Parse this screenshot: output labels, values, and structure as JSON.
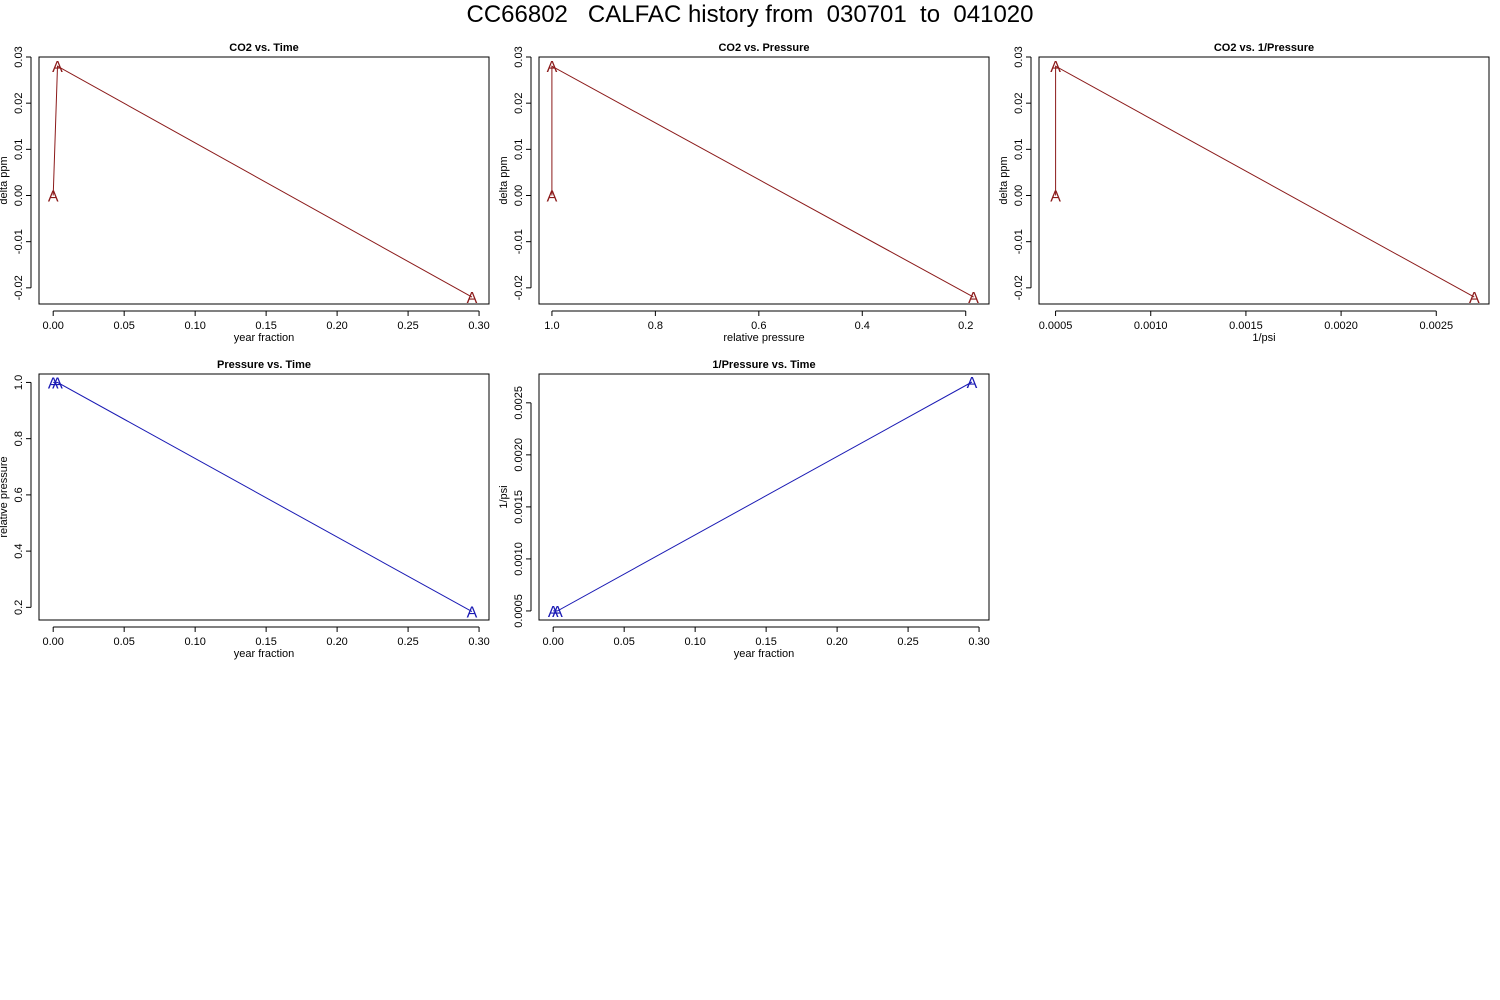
{
  "page": {
    "title": "CC66802   CALFAC history from  030701  to  041020"
  },
  "colors": {
    "co2_series": "#8b1a1a",
    "pressure_series": "#1a1ab4"
  },
  "chart_data": [
    {
      "id": "co2-vs-time",
      "type": "line",
      "title": "CO2 vs. Time",
      "xlabel": "year fraction",
      "ylabel": "delta ppm",
      "xlim": [
        -0.01,
        0.307
      ],
      "ylim": [
        -0.0235,
        0.03
      ],
      "xticks": [
        0.0,
        0.05,
        0.1,
        0.15,
        0.2,
        0.25,
        0.3
      ],
      "xtick_labels": [
        "0.00",
        "0.05",
        "0.10",
        "0.15",
        "0.20",
        "0.25",
        "0.30"
      ],
      "yticks": [
        -0.02,
        -0.01,
        0.0,
        0.01,
        0.02,
        0.03
      ],
      "ytick_labels": [
        "-0.02",
        "-0.01",
        "0.00",
        "0.01",
        "0.02",
        "0.03"
      ],
      "marker": "A",
      "color": "#8b1a1a",
      "points": [
        {
          "x": 0.0,
          "y": 0.0
        },
        {
          "x": 0.003,
          "y": 0.028
        },
        {
          "x": 0.295,
          "y": -0.022
        }
      ]
    },
    {
      "id": "co2-vs-pressure",
      "type": "line",
      "title": "CO2 vs. Pressure",
      "xlabel": "relative pressure",
      "ylabel": "delta ppm",
      "xlim": [
        1.025,
        0.155
      ],
      "ylim": [
        -0.0235,
        0.03
      ],
      "xticks": [
        1.0,
        0.8,
        0.6,
        0.4,
        0.2
      ],
      "xtick_labels": [
        "1.0",
        "0.8",
        "0.6",
        "0.4",
        "0.2"
      ],
      "yticks": [
        -0.02,
        -0.01,
        0.0,
        0.01,
        0.02,
        0.03
      ],
      "ytick_labels": [
        "-0.02",
        "-0.01",
        "0.00",
        "0.01",
        "0.02",
        "0.03"
      ],
      "marker": "A",
      "color": "#8b1a1a",
      "points": [
        {
          "x": 1.0,
          "y": 0.0
        },
        {
          "x": 1.0,
          "y": 0.028
        },
        {
          "x": 0.185,
          "y": -0.022
        }
      ]
    },
    {
      "id": "co2-vs-inv-pressure",
      "type": "line",
      "title": "CO2 vs. 1/Pressure",
      "xlabel": "1/psi",
      "ylabel": "delta ppm",
      "xlim": [
        0.000413,
        0.002777
      ],
      "ylim": [
        -0.0235,
        0.03
      ],
      "xticks": [
        0.0005,
        0.001,
        0.0015,
        0.002,
        0.0025
      ],
      "xtick_labels": [
        "0.0005",
        "0.0010",
        "0.0015",
        "0.0020",
        "0.0025"
      ],
      "yticks": [
        -0.02,
        -0.01,
        0.0,
        0.01,
        0.02,
        0.03
      ],
      "ytick_labels": [
        "-0.02",
        "-0.01",
        "0.00",
        "0.01",
        "0.02",
        "0.03"
      ],
      "marker": "A",
      "color": "#8b1a1a",
      "points": [
        {
          "x": 0.0005,
          "y": 0.0
        },
        {
          "x": 0.0005,
          "y": 0.028
        },
        {
          "x": 0.0027,
          "y": -0.022
        }
      ]
    },
    {
      "id": "pressure-vs-time",
      "type": "line",
      "title": "Pressure vs. Time",
      "xlabel": "year fraction",
      "ylabel": "relative pressure",
      "xlim": [
        -0.01,
        0.307
      ],
      "ylim": [
        0.155,
        1.03
      ],
      "xticks": [
        0.0,
        0.05,
        0.1,
        0.15,
        0.2,
        0.25,
        0.3
      ],
      "xtick_labels": [
        "0.00",
        "0.05",
        "0.10",
        "0.15",
        "0.20",
        "0.25",
        "0.30"
      ],
      "yticks": [
        0.2,
        0.4,
        0.6,
        0.8,
        1.0
      ],
      "ytick_labels": [
        "0.2",
        "0.4",
        "0.6",
        "0.8",
        "1.0"
      ],
      "marker": "A",
      "color": "#1a1ab4",
      "points": [
        {
          "x": 0.0,
          "y": 1.0
        },
        {
          "x": 0.003,
          "y": 1.0
        },
        {
          "x": 0.295,
          "y": 0.185
        }
      ]
    },
    {
      "id": "inv-pressure-vs-time",
      "type": "line",
      "title": "1/Pressure vs. Time",
      "xlabel": "year fraction",
      "ylabel": "1/psi",
      "xlim": [
        -0.01,
        0.307
      ],
      "ylim": [
        0.000413,
        0.002777
      ],
      "xticks": [
        0.0,
        0.05,
        0.1,
        0.15,
        0.2,
        0.25,
        0.3
      ],
      "xtick_labels": [
        "0.00",
        "0.05",
        "0.10",
        "0.15",
        "0.20",
        "0.25",
        "0.30"
      ],
      "yticks": [
        0.0005,
        0.001,
        0.0015,
        0.002,
        0.0025
      ],
      "ytick_labels": [
        "0.0005",
        "0.0010",
        "0.0015",
        "0.0020",
        "0.0025"
      ],
      "marker": "A",
      "color": "#1a1ab4",
      "points": [
        {
          "x": 0.0,
          "y": 0.0005
        },
        {
          "x": 0.003,
          "y": 0.0005
        },
        {
          "x": 0.295,
          "y": 0.0027
        }
      ]
    }
  ]
}
